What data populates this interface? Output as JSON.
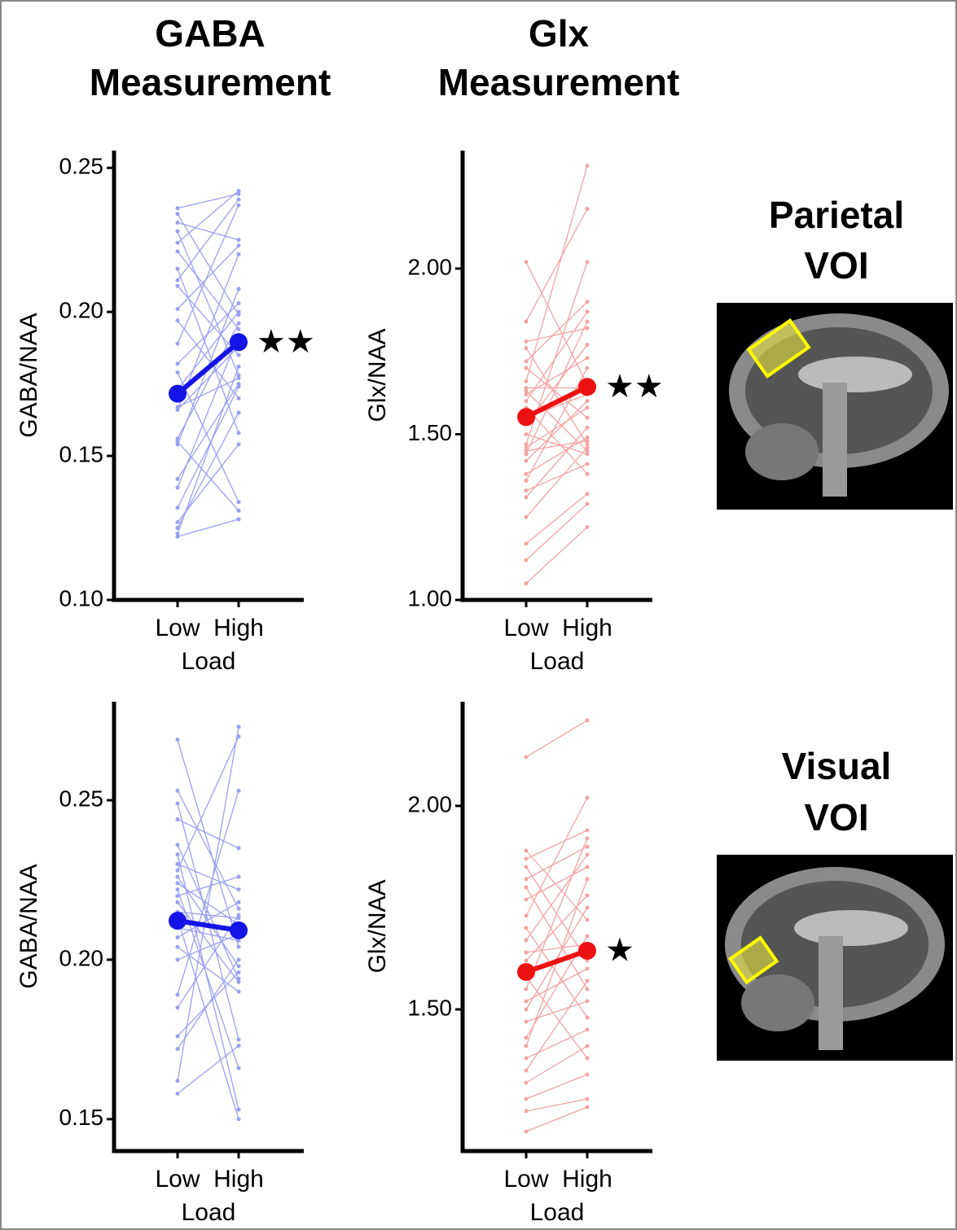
{
  "columns": [
    [
      "GABA",
      "Measurement"
    ],
    [
      "Glx",
      "Measurement"
    ]
  ],
  "rows": [
    [
      "Parietal",
      "VOI"
    ],
    [
      "Visual",
      "VOI"
    ]
  ],
  "chart_data": [
    {
      "type": "slope",
      "ylabel": "GABA/NAA",
      "xlabel": "Load",
      "categories": [
        "Low",
        "High"
      ],
      "ylim": [
        0.1,
        0.256
      ],
      "yticks": [
        {
          "value": 0.1,
          "label": "0.10"
        },
        0.15,
        {
          "value": 0.2,
          "label": "0.20"
        },
        0.25
      ],
      "subject_color": "#9aa0ef",
      "mean_color": "#1414e6",
      "annotation": "★★",
      "mean": [
        0.1716,
        0.1895
      ],
      "subjects": [
        [
          0.236,
          0.241
        ],
        [
          0.234,
          0.199
        ],
        [
          0.231,
          0.225
        ],
        [
          0.228,
          0.178
        ],
        [
          0.224,
          0.242
        ],
        [
          0.221,
          0.194
        ],
        [
          0.215,
          0.158
        ],
        [
          0.211,
          0.239
        ],
        [
          0.209,
          0.185
        ],
        [
          0.201,
          0.223
        ],
        [
          0.197,
          0.17
        ],
        [
          0.189,
          0.237
        ],
        [
          0.182,
          0.203
        ],
        [
          0.179,
          0.134
        ],
        [
          0.173,
          0.2
        ],
        [
          0.167,
          0.177
        ],
        [
          0.166,
          0.22
        ],
        [
          0.166,
          0.188
        ],
        [
          0.156,
          0.196
        ],
        [
          0.155,
          0.131
        ],
        [
          0.154,
          0.208
        ],
        [
          0.142,
          0.175
        ],
        [
          0.139,
          0.192
        ],
        [
          0.132,
          0.174
        ],
        [
          0.127,
          0.154
        ],
        [
          0.125,
          0.165
        ],
        [
          0.123,
          0.181
        ],
        [
          0.122,
          0.128
        ]
      ]
    },
    {
      "type": "slope",
      "ylabel": "Glx/NAA",
      "xlabel": "Load",
      "categories": [
        "Low",
        "High"
      ],
      "ylim": [
        1.0,
        2.356
      ],
      "yticks": [
        {
          "value": 1.0,
          "label": "1.00"
        },
        {
          "value": 1.5,
          "label": "1.50"
        },
        {
          "value": 2.0,
          "label": "2.00"
        }
      ],
      "subject_color": "#f2a4a4",
      "mean_color": "#ee1111",
      "annotation": "★★",
      "mean": [
        1.552,
        1.643
      ],
      "subjects": [
        [
          2.02,
          1.65
        ],
        [
          1.84,
          2.18
        ],
        [
          1.78,
          1.82
        ],
        [
          1.76,
          1.47
        ],
        [
          1.72,
          1.9
        ],
        [
          1.7,
          1.55
        ],
        [
          1.66,
          2.31
        ],
        [
          1.64,
          1.64
        ],
        [
          1.63,
          1.45
        ],
        [
          1.62,
          1.73
        ],
        [
          1.6,
          1.87
        ],
        [
          1.58,
          1.38
        ],
        [
          1.55,
          1.62
        ],
        [
          1.53,
          1.77
        ],
        [
          1.5,
          1.44
        ],
        [
          1.47,
          2.02
        ],
        [
          1.46,
          1.58
        ],
        [
          1.45,
          1.48
        ],
        [
          1.44,
          1.84
        ],
        [
          1.42,
          1.6
        ],
        [
          1.38,
          1.49
        ],
        [
          1.36,
          1.7
        ],
        [
          1.33,
          1.41
        ],
        [
          1.31,
          1.52
        ],
        [
          1.25,
          1.46
        ],
        [
          1.17,
          1.32
        ],
        [
          1.12,
          1.29
        ],
        [
          1.05,
          1.22
        ]
      ]
    },
    {
      "type": "slope",
      "ylabel": "GABA/NAA",
      "xlabel": "Load",
      "categories": [
        "Low",
        "High"
      ],
      "ylim": [
        0.14,
        0.2809
      ],
      "yticks": [
        0.15,
        {
          "value": 0.2,
          "label": "0.20"
        },
        0.25
      ],
      "subject_color": "#9aa0ef",
      "mean_color": "#1414e6",
      "mean": [
        0.2122,
        0.2092
      ],
      "subjects": [
        [
          0.269,
          0.204
        ],
        [
          0.253,
          0.216
        ],
        [
          0.249,
          0.175
        ],
        [
          0.244,
          0.235
        ],
        [
          0.236,
          0.194
        ],
        [
          0.233,
          0.153
        ],
        [
          0.23,
          0.222
        ],
        [
          0.228,
          0.27
        ],
        [
          0.226,
          0.198
        ],
        [
          0.224,
          0.211
        ],
        [
          0.222,
          0.166
        ],
        [
          0.22,
          0.226
        ],
        [
          0.218,
          0.193
        ],
        [
          0.215,
          0.213
        ],
        [
          0.213,
          0.15
        ],
        [
          0.21,
          0.206
        ],
        [
          0.207,
          0.218
        ],
        [
          0.204,
          0.19
        ],
        [
          0.2,
          0.208
        ],
        [
          0.189,
          0.253
        ],
        [
          0.185,
          0.214
        ],
        [
          0.176,
          0.196
        ],
        [
          0.172,
          0.2
        ],
        [
          0.162,
          0.273
        ],
        [
          0.158,
          0.173
        ]
      ]
    },
    {
      "type": "slope",
      "ylabel": "Glx/NAA",
      "xlabel": "Load",
      "categories": [
        "Low",
        "High"
      ],
      "ylim": [
        1.152,
        2.256
      ],
      "yticks": [
        {
          "value": 1.5,
          "label": "1.50"
        },
        {
          "value": 2.0,
          "label": "2.00"
        }
      ],
      "subject_color": "#f2a4a4",
      "mean_color": "#ee1111",
      "annotation": "★",
      "mean": [
        1.592,
        1.644
      ],
      "subjects": [
        [
          2.12,
          2.21
        ],
        [
          1.89,
          1.72
        ],
        [
          1.87,
          1.94
        ],
        [
          1.85,
          1.62
        ],
        [
          1.82,
          1.9
        ],
        [
          1.8,
          1.55
        ],
        [
          1.77,
          1.85
        ],
        [
          1.73,
          2.02
        ],
        [
          1.7,
          1.48
        ],
        [
          1.67,
          1.88
        ],
        [
          1.64,
          1.66
        ],
        [
          1.62,
          1.78
        ],
        [
          1.58,
          1.38
        ],
        [
          1.55,
          1.92
        ],
        [
          1.52,
          1.6
        ],
        [
          1.5,
          1.75
        ],
        [
          1.47,
          1.52
        ],
        [
          1.43,
          1.68
        ],
        [
          1.41,
          1.82
        ],
        [
          1.38,
          1.45
        ],
        [
          1.35,
          1.57
        ],
        [
          1.32,
          1.41
        ],
        [
          1.28,
          1.34
        ],
        [
          1.25,
          1.28
        ],
        [
          1.2,
          1.26
        ]
      ]
    }
  ]
}
